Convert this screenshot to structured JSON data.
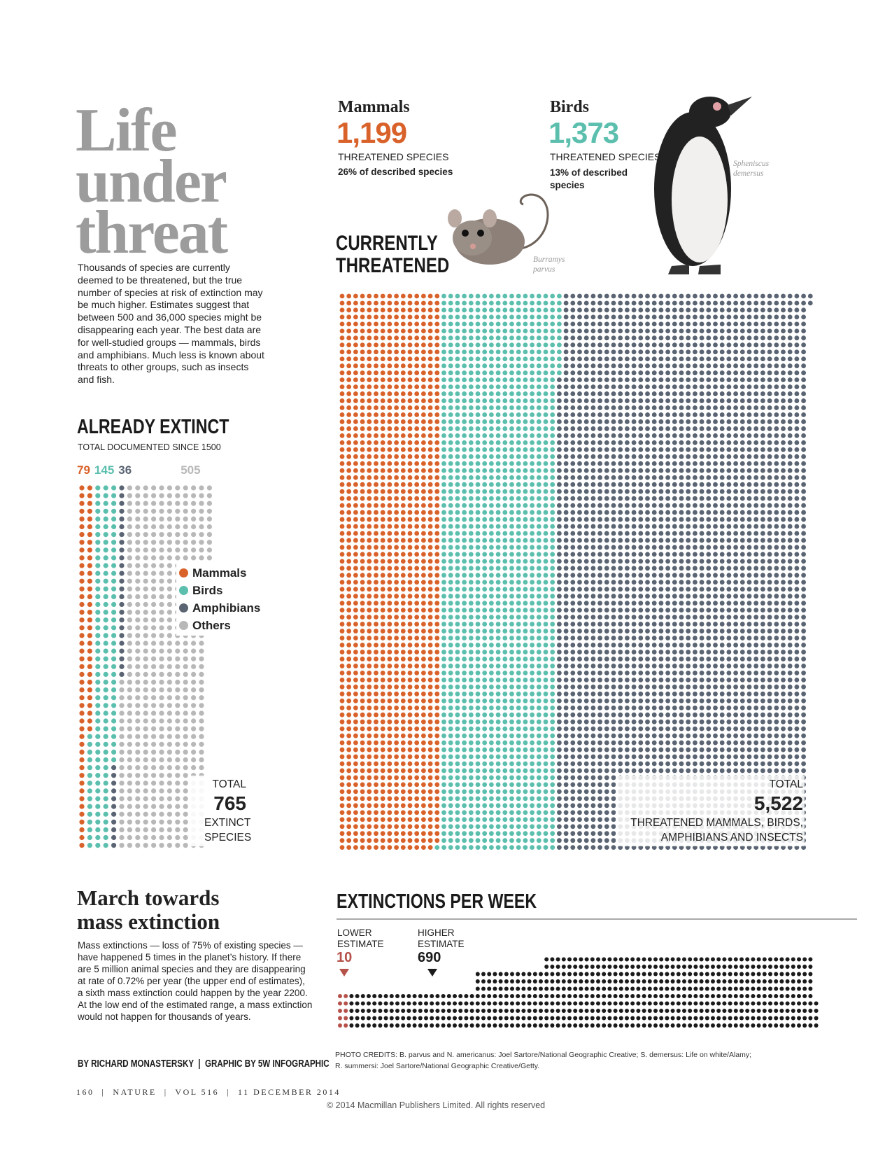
{
  "title_lines": [
    "Life",
    "under",
    "threat"
  ],
  "intro": "Thousands of species are currently deemed to be threatened, but the true number of species at risk of extinction may be much higher. Estimates suggest that between 500 and 36,000 species might be disappearing each year. The best data are for well-studied groups — mammals, birds and amphibians. Much less is known about threats to other groups, such as insects and fish.",
  "mammals": {
    "name": "Mammals",
    "count": {
      "value": 1199,
      "label": "1,199"
    },
    "caption": "THREATENED SPECIES",
    "share": "26% of described species",
    "color": "#d9622b"
  },
  "birds": {
    "name": "Birds",
    "count": {
      "value": 1373,
      "label": "1,373"
    },
    "caption": "THREATENED SPECIES",
    "share": "13% of described species",
    "color": "#5cbfae"
  },
  "photo_captions": {
    "mouse": "Burramys parvus",
    "penguin": "Spheniscus demersus"
  },
  "threatened": {
    "heading": "CURRENTLY THREATENED",
    "total_label": "TOTAL",
    "total": {
      "value": 5522,
      "label": "5,522"
    },
    "total_caption": "THREATENED MAMMALS, BIRDS, AMPHIBIANS AND INSECTS"
  },
  "extinct": {
    "heading": "ALREADY EXTINCT",
    "subheading": "TOTAL DOCUMENTED SINCE 1500",
    "groups": [
      {
        "name": "Mammals",
        "value": 79,
        "color": "#d9622b"
      },
      {
        "name": "Birds",
        "value": 145,
        "color": "#5cbfae"
      },
      {
        "name": "Amphibians",
        "value": 36,
        "color": "#5a6472"
      },
      {
        "name": "Others",
        "value": 505,
        "color": "#b8b8b8"
      }
    ],
    "total_label": "TOTAL",
    "total": 765,
    "total_caption": "EXTINCT SPECIES"
  },
  "march": {
    "title": "March towards mass extinction",
    "body": "Mass extinctions — loss of 75% of existing species — have happened 5 times in the planet’s history. If there are 5 million animal species and they are disappearing at rate of 0.72% per year (the upper end of estimates), a sixth mass extinction could happen by the year 2200. At the low end of the estimated range, a mass extinction would not happen for thousands of years."
  },
  "per_week": {
    "heading": "EXTINCTIONS PER WEEK",
    "lower": {
      "label": "LOWER ESTIMATE",
      "value": 10,
      "color": "#b5524a"
    },
    "higher": {
      "label": "HIGHER ESTIMATE",
      "value": 690,
      "color": "#1b1b1b"
    }
  },
  "credits": [
    "PHOTO CREDITS: B. parvus and N. americanus: Joel Sartore/National Geographic Creative; S. demersus: Life on white/Alamy;",
    "R. summersi: Joel Sartore/National Geographic Creative/Getty."
  ],
  "byline": "BY RICHARD MONASTERSKY  |  GRAPHIC BY 5W INFOGRAPHIC",
  "footer": "160  |  NATURE  |  VOL 516  |  11 DECEMBER 2014",
  "copyright": "© 2014 Macmillan Publishers Limited. All rights reserved"
}
